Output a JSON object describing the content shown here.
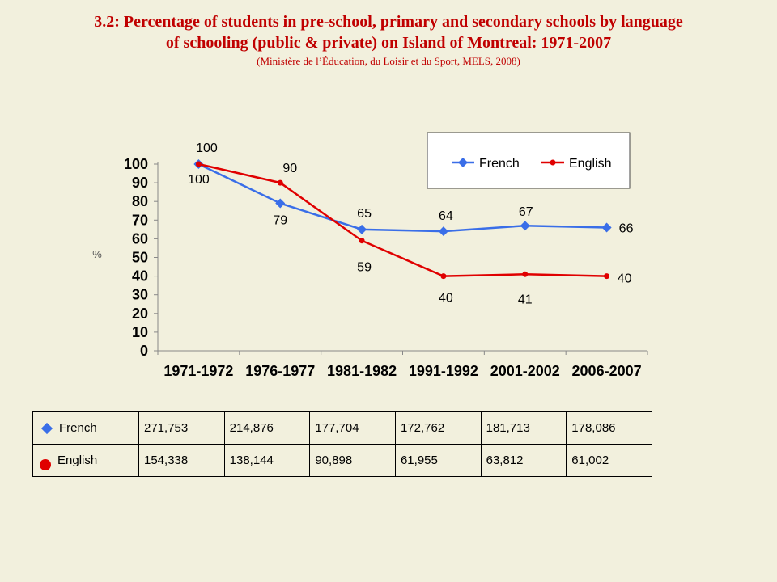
{
  "title_line1": "3.2: Percentage of students in pre-school, primary and secondary schools by language",
  "title_line2": "of schooling (public & private) on Island of Montreal: 1971-2007",
  "subtitle": "(Ministère de l’Éducation, du Loisir et du Sport, MELS, 2008)",
  "chart_data": {
    "type": "line",
    "categories": [
      "1971-1972",
      "1976-1977",
      "1981-1982",
      "1991-1992",
      "2001-2002",
      "2006-2007"
    ],
    "series": [
      {
        "name": "French",
        "values": [
          100,
          79,
          65,
          64,
          67,
          66
        ],
        "color": "#3a6ee8",
        "marker": "diamond"
      },
      {
        "name": "English",
        "values": [
          100,
          90,
          59,
          40,
          41,
          40
        ],
        "color": "#e00000",
        "marker": "circle"
      }
    ],
    "ylabel": "%",
    "ylim": [
      0,
      100
    ],
    "yticks": [
      0,
      10,
      20,
      30,
      40,
      50,
      60,
      70,
      80,
      90,
      100
    ],
    "grid": false,
    "legend": "top-right"
  },
  "table": {
    "rows": [
      {
        "label": "French",
        "values": [
          "271,753",
          "214,876",
          "177,704",
          "172,762",
          "181,713",
          "178,086"
        ]
      },
      {
        "label": "English",
        "values": [
          "154,338",
          "138,144",
          "90,898",
          "61,955",
          "63,812",
          "61,002"
        ]
      }
    ]
  }
}
